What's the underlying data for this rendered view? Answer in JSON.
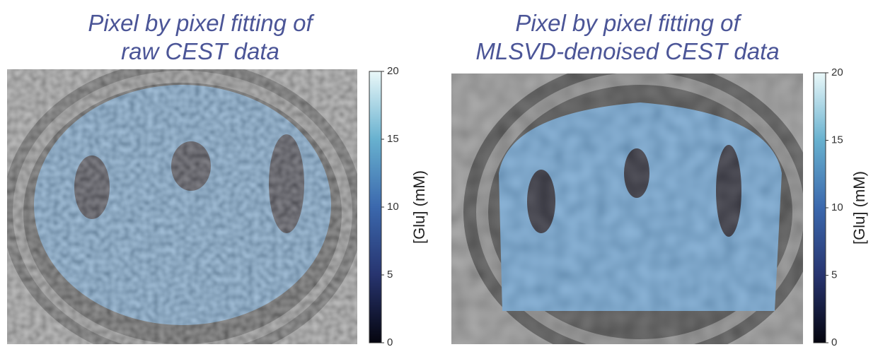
{
  "panels": [
    {
      "title": [
        "Pixel by pixel fitting of",
        "raw CEST data"
      ],
      "colorbar": {
        "label": "[Glu] (mM)",
        "lim": [
          0,
          20
        ],
        "ticks": [
          0,
          5,
          10,
          15,
          20
        ]
      }
    },
    {
      "title": [
        "Pixel by pixel fitting of",
        "MLSVD-denoised CEST data"
      ],
      "colorbar": {
        "label": "[Glu] (mM)",
        "lim": [
          0,
          20
        ],
        "ticks": [
          0,
          5,
          10,
          15,
          20
        ]
      }
    }
  ]
}
